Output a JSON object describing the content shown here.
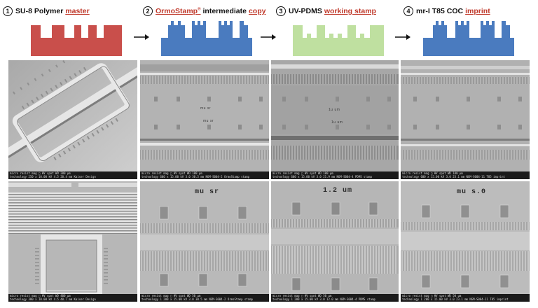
{
  "columns": [
    {
      "num": "1",
      "parts": [
        {
          "t": "SU-8 Polymer",
          "cls": ""
        },
        {
          "t": "master",
          "cls": "underline red"
        }
      ],
      "color": "#c94f4b"
    },
    {
      "num": "2",
      "parts": [
        {
          "t": "OrmoStamp",
          "cls": "underline orange",
          "sup": "®"
        },
        {
          "t": "intermediate",
          "cls": ""
        },
        {
          "t": "copy",
          "cls": "underline red"
        }
      ],
      "color": "#4a7bbf"
    },
    {
      "num": "3",
      "parts": [
        {
          "t": "UV-PDMS",
          "cls": ""
        },
        {
          "t": "working stamp",
          "cls": "underline red"
        }
      ],
      "color": "#bfe0a0"
    },
    {
      "num": "4",
      "parts": [
        {
          "t": "mr-I T85 COC",
          "cls": ""
        },
        {
          "t": "imprint",
          "cls": "underline red"
        }
      ],
      "color": "#4a7bbf"
    }
  ],
  "sem_top": [
    {
      "bar": "micro resist   mag □  HV   spot  WD                    200 µm",
      "bar2": "technology   250 x  10.00 kV 4.5  20.4 mm            Kaiser Design"
    },
    {
      "bar": "micro resist   mag □  HV   spot  WD                    100 µm",
      "bar2": "technology   600 x  15.00 kV 3.0  30.5 mm  NGM-S004-2   OrmoStamp stamp"
    },
    {
      "bar": "micro resist   mag □  HV   spot  WD                    100 µm",
      "bar2": "technology   600 x  15.00 kV 3.0  21.9 mm  NGM-S004-4   PDMS stamp"
    },
    {
      "bar": "micro resist   mag □  HV   spot  WD                    100 µm",
      "bar2": "technology   600 x  15.00 kV 3.0  23.1 mm  NGM-S004-11  T85 imprint"
    }
  ],
  "sem_bottom": [
    {
      "bar": "micro resist   mag □  HV   spot  WD                    400 µm",
      "bar2": "technology   300 x  10.00 kV 4.5  40.7 mm            Kaiser Design"
    },
    {
      "bar": "micro resist   mag □  HV   spot  WD                     50 µm",
      "bar2": "technology   1 200 x 15.00 kV 3.0  30.5 mm  NGM-S004-2   OrmoStamp stamp"
    },
    {
      "bar": "micro resist   mag □  HV   spot  WD                     50 µm",
      "bar2": "technology   1 200 x 15.00 kV 3.0  12.0 mm  NGM-S004-4   PDMS stamp"
    },
    {
      "bar": "micro resist   mag □  HV   spot  WD                     50 µm",
      "bar2": "technology   1 200 x 15.00 kV 3.0  23.1 mm  NGM-S004-11  T85 imprint"
    }
  ],
  "sem_labels": {
    "top2": [
      "mu sr",
      "mu sr"
    ],
    "top3": [
      "1u um",
      "1u um"
    ],
    "bot2": "mu sr",
    "bot3": "1.2 um",
    "bot4": "mu s.0"
  }
}
